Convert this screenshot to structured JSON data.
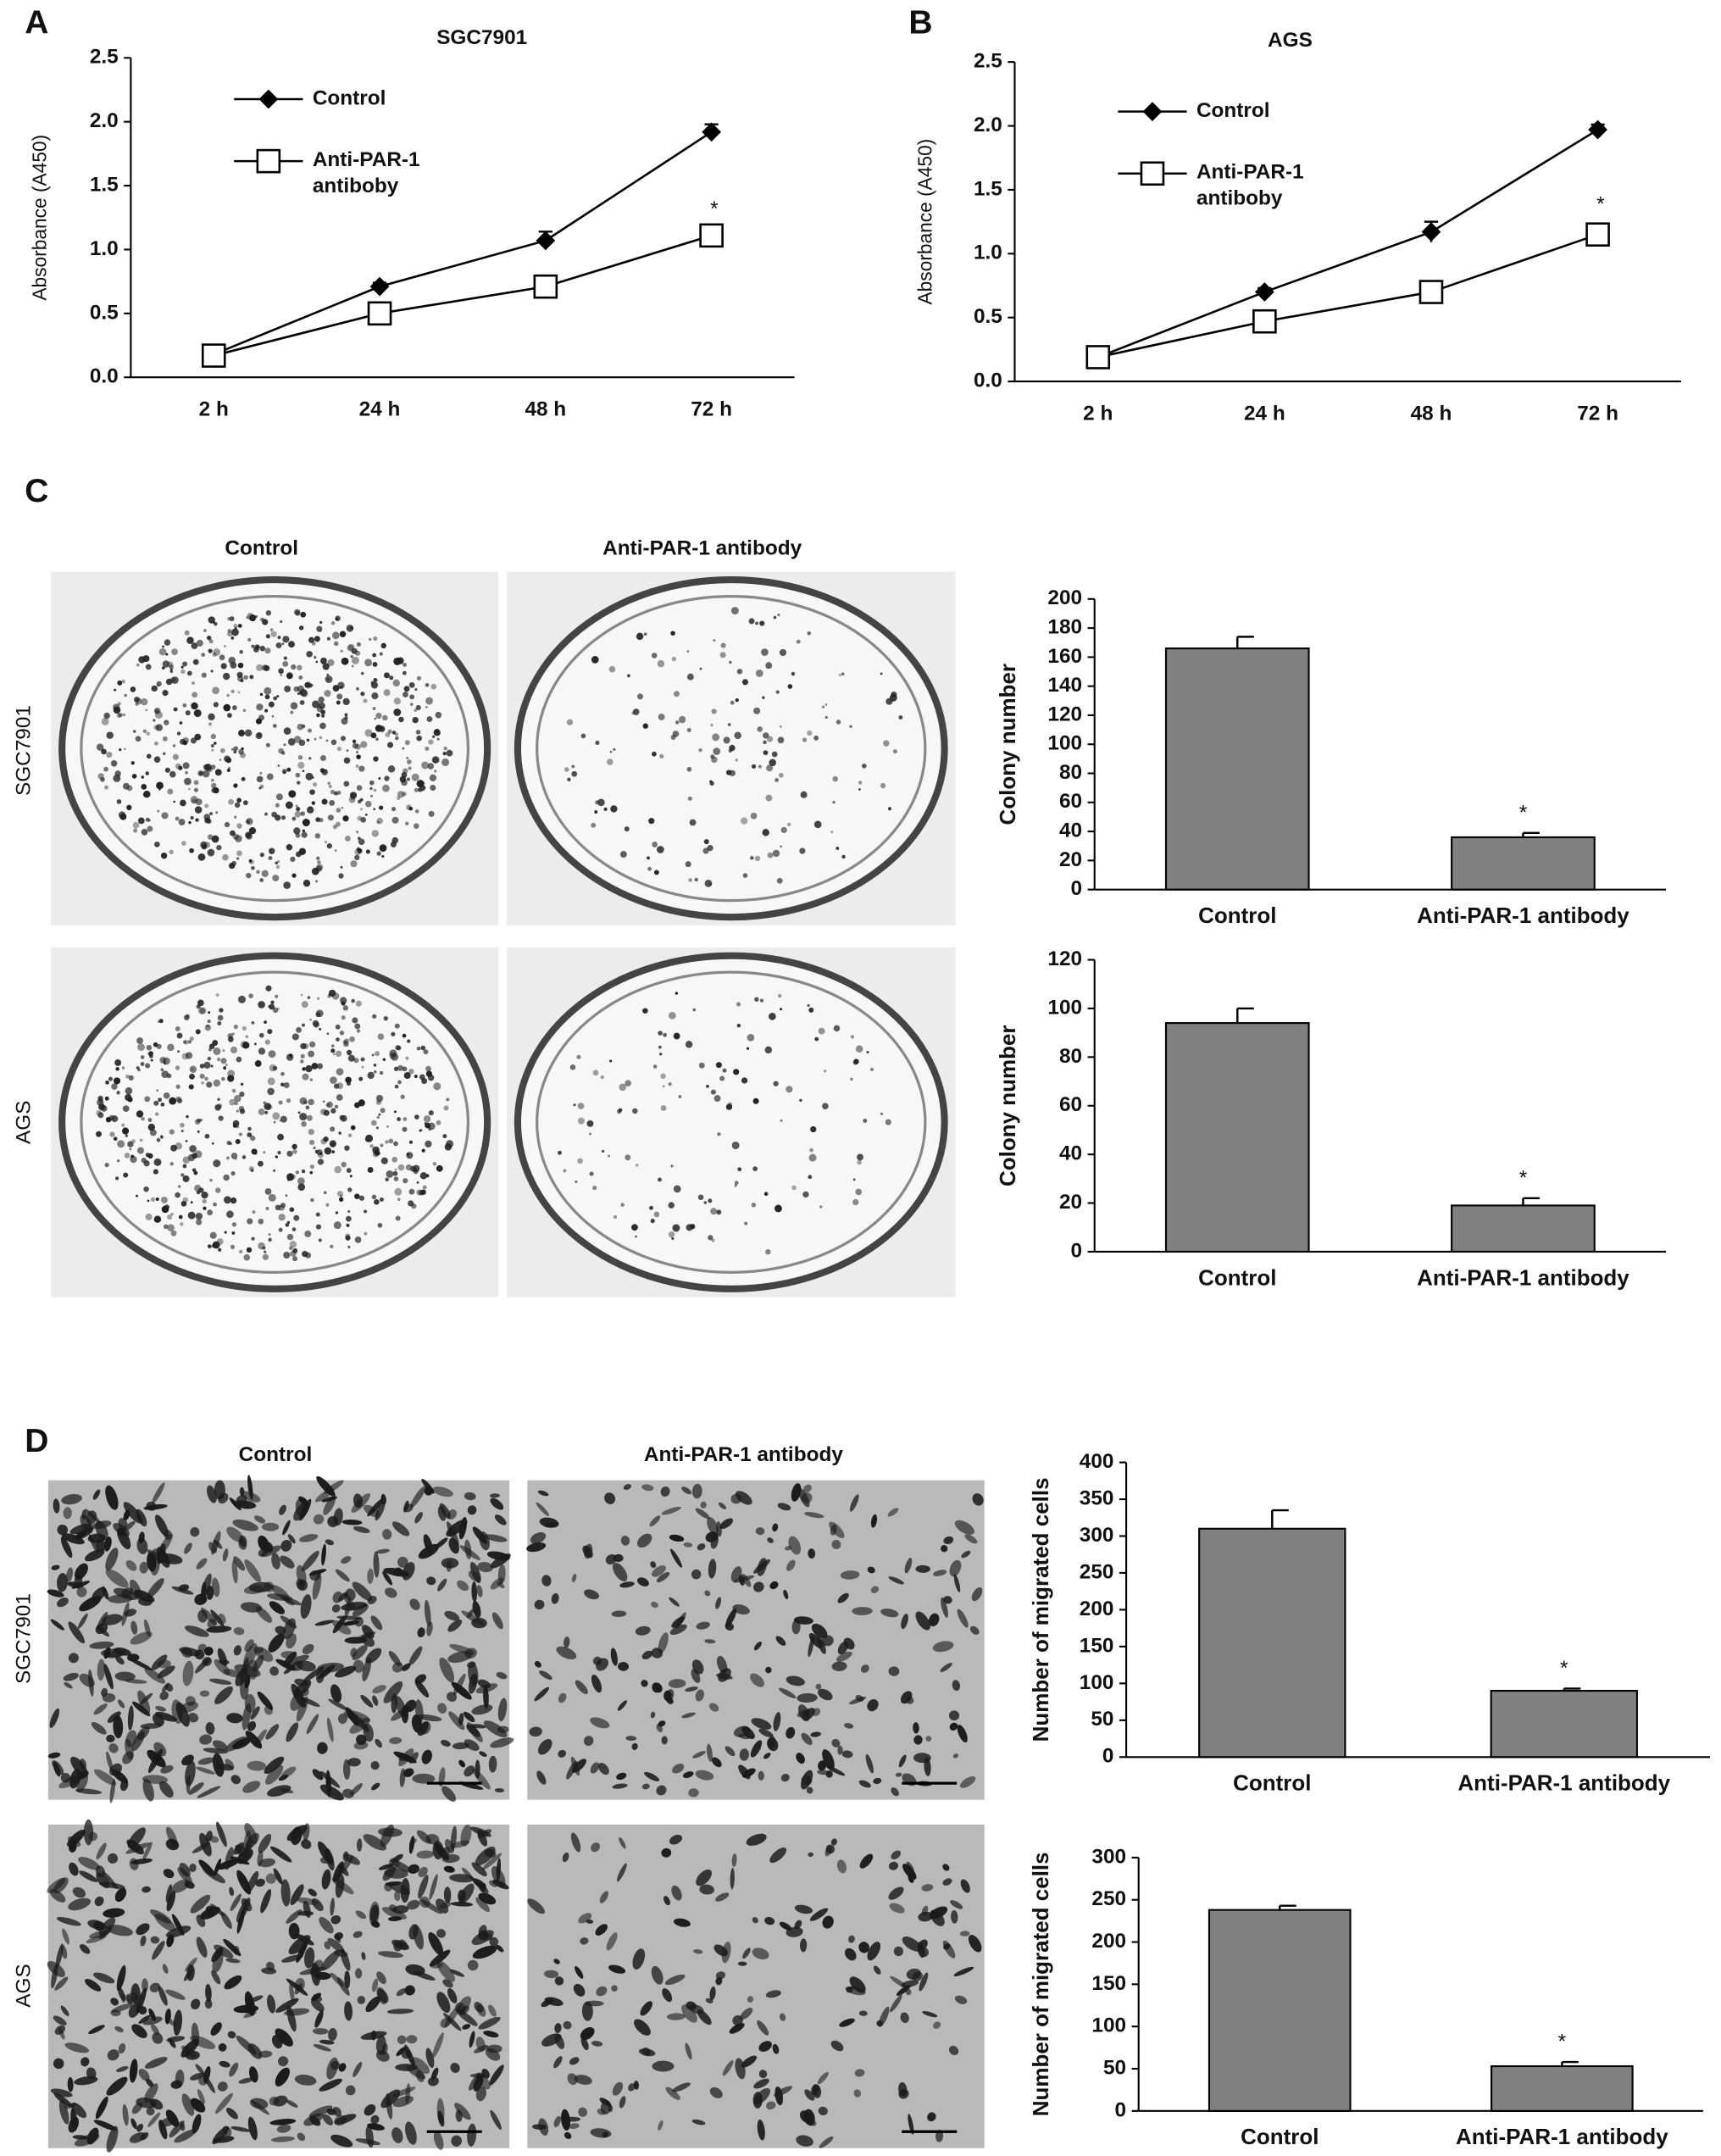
{
  "panel_labels": [
    "A",
    "B",
    "C",
    "D"
  ],
  "colony_photos": {
    "columns": [
      "Control",
      "Anti-PAR-1 antibody"
    ],
    "rows": [
      "SGC7901",
      "AGS"
    ]
  },
  "migration_photos": {
    "columns": [
      "Control",
      "Anti-PAR-1 antibody"
    ],
    "rows": [
      "SGC7901",
      "AGS"
    ]
  },
  "chart_data": [
    {
      "type": "line",
      "title": "SGC7901",
      "ylabel": "Absorbance (A450)",
      "categories": [
        "2 h",
        "24 h",
        "48 h",
        "72 h"
      ],
      "series": [
        {
          "name": "Control",
          "color": "#000000",
          "marker": "diamond",
          "values": [
            0.18,
            0.71,
            1.07,
            1.92
          ],
          "errors": [
            0.02,
            0.03,
            0.07,
            0.06
          ]
        },
        {
          "name": "Anti-PAR-1 antiboby",
          "color": "#000000",
          "marker": "square",
          "values": [
            0.17,
            0.5,
            0.71,
            1.11
          ],
          "errors": [
            0.02,
            0.02,
            0.03,
            0.05
          ]
        }
      ],
      "annotation": "*",
      "ylim": [
        0,
        2.5
      ],
      "yticks": [
        {
          "value": 0,
          "label": "0.0"
        },
        0.5,
        {
          "value": 1,
          "label": "1.0"
        },
        1.5,
        {
          "value": 2,
          "label": "2.0"
        },
        2.5
      ]
    },
    {
      "type": "line",
      "title": "AGS",
      "ylabel": "Absorbance (A450)",
      "categories": [
        "2 h",
        "24 h",
        "48 h",
        "72 h"
      ],
      "series": [
        {
          "name": "Control",
          "color": "#000000",
          "marker": "diamond",
          "values": [
            0.19,
            0.7,
            1.17,
            1.97
          ],
          "errors": [
            0.02,
            0.03,
            0.08,
            0.04
          ]
        },
        {
          "name": "Anti-PAR-1 antiboby",
          "color": "#000000",
          "marker": "square",
          "values": [
            0.19,
            0.47,
            0.7,
            1.15
          ],
          "errors": [
            0.02,
            0.03,
            0.03,
            0.08
          ]
        }
      ],
      "annotation": "*",
      "ylim": [
        0,
        2.5
      ],
      "yticks": [
        {
          "value": 0,
          "label": "0.0"
        },
        0.5,
        {
          "value": 1,
          "label": "1.0"
        },
        1.5,
        {
          "value": 2,
          "label": "2.0"
        },
        2.5
      ]
    },
    {
      "type": "bar",
      "ylabel": "Colony number",
      "categories": [
        "Control",
        "Anti-PAR-1 antibody"
      ],
      "values": [
        166,
        36
      ],
      "errors": [
        8,
        3
      ],
      "color": "#808080",
      "annotation": "*",
      "ylim": [
        0,
        200
      ],
      "yticks": [
        0,
        20,
        40,
        60,
        80,
        100,
        120,
        140,
        160,
        180,
        200
      ]
    },
    {
      "type": "bar",
      "ylabel": "Colony number",
      "categories": [
        "Control",
        "Anti-PAR-1 antibody"
      ],
      "values": [
        94,
        19
      ],
      "errors": [
        6,
        3
      ],
      "color": "#808080",
      "annotation": "*",
      "ylim": [
        0,
        120
      ],
      "yticks": [
        0,
        20,
        40,
        60,
        80,
        100,
        120
      ]
    },
    {
      "type": "bar",
      "ylabel": "Number of migrated cells",
      "categories": [
        "Control",
        "Anti-PAR-1 antibody"
      ],
      "values": [
        310,
        90
      ],
      "errors": [
        25,
        3
      ],
      "color": "#808080",
      "annotation": "*",
      "ylim": [
        0,
        400
      ],
      "yticks": [
        0,
        50,
        100,
        150,
        200,
        250,
        300,
        350,
        400
      ]
    },
    {
      "type": "bar",
      "ylabel": "Number of migrated cells",
      "categories": [
        "Control",
        "Anti-PAR-1 antibody"
      ],
      "values": [
        238,
        53
      ],
      "errors": [
        5,
        5
      ],
      "color": "#808080",
      "annotation": "*",
      "ylim": [
        0,
        300
      ],
      "yticks": [
        0,
        50,
        100,
        150,
        200,
        250,
        300
      ]
    }
  ]
}
